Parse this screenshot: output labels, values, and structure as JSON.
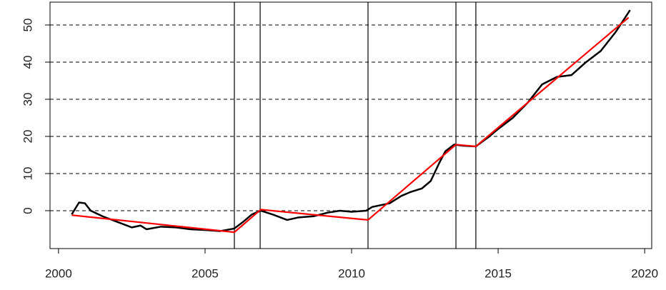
{
  "chart_data": {
    "type": "line",
    "xlim": [
      1999.71,
      2020.24
    ],
    "ylim": [
      -10.2,
      56.15
    ],
    "xticks": [
      2000,
      2005,
      2010,
      2015,
      2020
    ],
    "yticks": [
      0,
      10,
      20,
      30,
      40,
      50
    ],
    "grid": true,
    "vlines": [
      2006.0,
      2006.88,
      2010.56,
      2013.56,
      2014.24
    ],
    "series": [
      {
        "color": "#000000",
        "x": [
          2000.45,
          2000.7,
          2000.9,
          2001.1,
          2001.5,
          2002,
          2002.5,
          2002.8,
          2003,
          2003.5,
          2004,
          2004.5,
          2005,
          2005.5,
          2006,
          2006.3,
          2006.6,
          2006.9,
          2007.3,
          2007.8,
          2008.2,
          2008.7,
          2009.2,
          2009.6,
          2010,
          2010.5,
          2010.7,
          2011,
          2011.3,
          2011.7,
          2012,
          2012.4,
          2012.7,
          2013,
          2013.2,
          2013.5,
          2013.8,
          2014.24,
          2014.7,
          2015,
          2015.5,
          2016,
          2016.5,
          2017,
          2017.5,
          2018,
          2018.5,
          2019,
          2019.5
        ],
        "values": [
          -1,
          2.2,
          2,
          0,
          -1.5,
          -3,
          -4.5,
          -4,
          -5,
          -4.3,
          -4.5,
          -5,
          -5.2,
          -5.5,
          -4.8,
          -3,
          -1,
          0,
          -1,
          -2.5,
          -1.8,
          -1.5,
          -0.5,
          0,
          -0.3,
          0,
          1,
          1.5,
          2,
          4,
          5,
          6,
          8,
          13,
          16,
          17.8,
          17.5,
          17.3,
          20,
          22,
          25,
          29,
          34,
          36,
          36.5,
          40,
          43,
          48,
          54
        ]
      },
      {
        "color": "#ff0000",
        "x": [
          2000.45,
          2006.0,
          2006.9,
          2010.56,
          2013.56,
          2014.24,
          2019.45
        ],
        "values": [
          -1.2,
          -5.8,
          0.3,
          -2.5,
          17.8,
          17.3,
          52
        ]
      }
    ]
  }
}
